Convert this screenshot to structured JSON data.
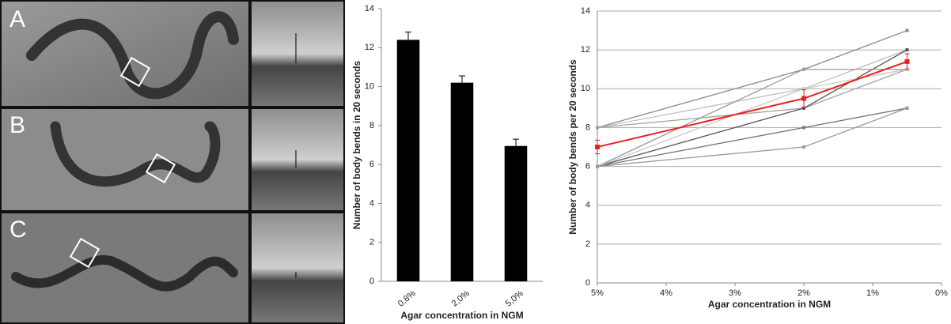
{
  "panels": {
    "labels": [
      "A",
      "B",
      "C"
    ]
  },
  "chart_data": [
    {
      "type": "bar",
      "ylabel": "Number of body bends in 20 seconds",
      "xlabel": "Agar concentration in NGM",
      "categories": [
        "0,8%",
        "2,0%",
        "5,0%"
      ],
      "values": [
        12.4,
        10.2,
        6.95
      ],
      "errors": [
        0.4,
        0.35,
        0.35
      ],
      "color": "#000000",
      "ylim": [
        0,
        14
      ],
      "yticks": [
        0,
        2,
        4,
        6,
        8,
        10,
        12,
        14
      ],
      "grid": false
    },
    {
      "type": "line",
      "ylabel": "Number of body bends per 20 seconds",
      "xlabel": "Agar concentration in NGM",
      "x": [
        5,
        2,
        0.5
      ],
      "xlim": [
        5,
        0
      ],
      "xticks": [
        {
          "value": 5,
          "label": "5%"
        },
        {
          "value": 4,
          "label": "4%"
        },
        {
          "value": 3,
          "label": "3%"
        },
        {
          "value": 2,
          "label": "2%"
        },
        {
          "value": 1,
          "label": "1%"
        },
        {
          "value": 0,
          "label": "0%"
        }
      ],
      "ylim": [
        0,
        14
      ],
      "yticks": [
        0,
        2,
        4,
        6,
        8,
        10,
        12,
        14
      ],
      "grid": true,
      "series": [
        {
          "color": "#8a8a8a",
          "values": [
            8,
            11,
            13
          ]
        },
        {
          "color": "#bdbdbd",
          "values": [
            8,
            10,
            12
          ]
        },
        {
          "color": "#a0a0a0",
          "values": [
            8,
            9,
            11
          ]
        },
        {
          "color": "#555555",
          "values": [
            6,
            9,
            12
          ]
        },
        {
          "color": "#999999",
          "values": [
            6,
            11,
            11
          ]
        },
        {
          "color": "#c8c8c8",
          "values": [
            6,
            10,
            11
          ]
        },
        {
          "color": "#777777",
          "values": [
            6,
            8,
            9
          ]
        },
        {
          "color": "#9a9a9a",
          "values": [
            6,
            7,
            9
          ]
        },
        {
          "color": "#e8201e",
          "values": [
            7,
            9.5,
            11.4
          ],
          "errors": [
            0.35,
            0.45,
            0.4
          ]
        }
      ]
    }
  ]
}
